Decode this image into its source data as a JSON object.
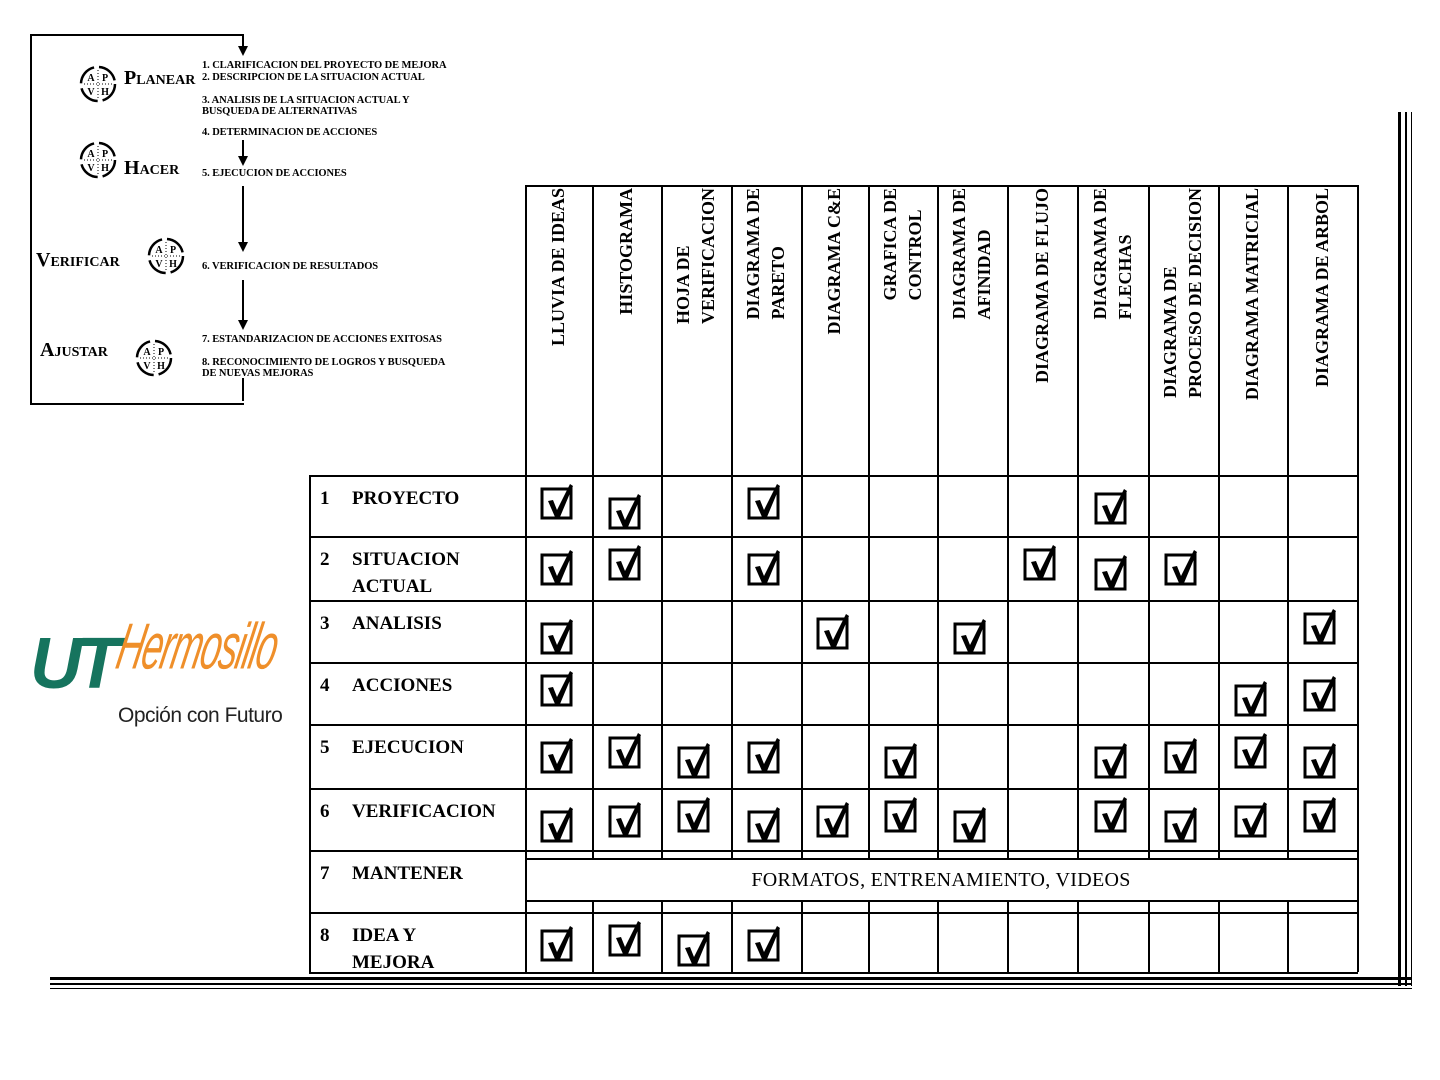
{
  "pdca": {
    "phases": [
      {
        "cap": "P",
        "rest": "LANEAR",
        "icon_letters": [
          "A",
          "P",
          "V",
          "H"
        ]
      },
      {
        "cap": "H",
        "rest": "ACER",
        "icon_letters": [
          "A",
          "P",
          "V",
          "H"
        ]
      },
      {
        "cap": "V",
        "rest": "ERIFICAR",
        "icon_letters": [
          "A",
          "P",
          "V",
          "H"
        ]
      },
      {
        "cap": "A",
        "rest": "JUSTAR",
        "icon_letters": [
          "A",
          "P",
          "V",
          "H"
        ]
      }
    ],
    "steps": [
      "1. CLARIFICACION DEL PROYECTO DE MEJORA",
      "2. DESCRIPCION DE LA SITUACION ACTUAL",
      "3. ANALISIS DE LA SITUACION ACTUAL Y\n    BUSQUEDA DE ALTERNATIVAS",
      "4. DETERMINACION DE ACCIONES",
      "5. EJECUCION  DE ACCIONES",
      "6. VERIFICACION DE RESULTADOS",
      "7. ESTANDARIZACION DE ACCIONES  EXITOSAS",
      "8. RECONOCIMIENTO DE LOGROS Y BUSQUEDA\n    DE NUEVAS MEJORAS"
    ]
  },
  "logo": {
    "brand": "UT",
    "name": "Hermosillo",
    "tagline": "Opción con  Futuro",
    "colors": {
      "green": "#16745e",
      "orange": "#ef8f2a"
    }
  },
  "matrix": {
    "columns": [
      "LLUVIA DE IDEAS",
      "HISTOGRAMA",
      "HOJA DE\nVERIFICACION",
      "DIAGRAMA DE\nPARETO",
      "DIAGRAMA C&E",
      "GRAFICA DE\nCONTROL",
      "DIAGRAMA DE\nAFINIDAD",
      "DIAGRAMA DE FLUJO",
      "DIAGRAMA DE\nFLECHAS",
      "DIAGRAMA DE\nPROCESO DE DECISION",
      "DIAGRAMA MATRICIAL",
      "DIAGRAMA DE ARBOL"
    ],
    "rows": [
      {
        "num": "1",
        "label": "PROYECTO",
        "checked": [
          0,
          1,
          3,
          8
        ]
      },
      {
        "num": "2",
        "label": "SITUACION\nACTUAL",
        "checked": [
          0,
          1,
          3,
          7,
          8,
          9
        ]
      },
      {
        "num": "3",
        "label": "ANALISIS",
        "checked": [
          0,
          4,
          6,
          11
        ]
      },
      {
        "num": "4",
        "label": "ACCIONES",
        "checked": [
          0,
          10,
          11
        ]
      },
      {
        "num": "5",
        "label": "EJECUCION",
        "checked": [
          0,
          1,
          2,
          3,
          5,
          8,
          9,
          10,
          11
        ]
      },
      {
        "num": "6",
        "label": "VERIFICACION",
        "checked": [
          0,
          1,
          2,
          3,
          4,
          5,
          6,
          8,
          9,
          10,
          11
        ]
      },
      {
        "num": "7",
        "label": "MANTENER",
        "checked": [],
        "note": "FORMATOS, ENTRENAMIENTO, VIDEOS"
      },
      {
        "num": "8",
        "label": "IDEA Y\nMEJORA",
        "checked": [
          0,
          1,
          2,
          3
        ]
      }
    ]
  }
}
